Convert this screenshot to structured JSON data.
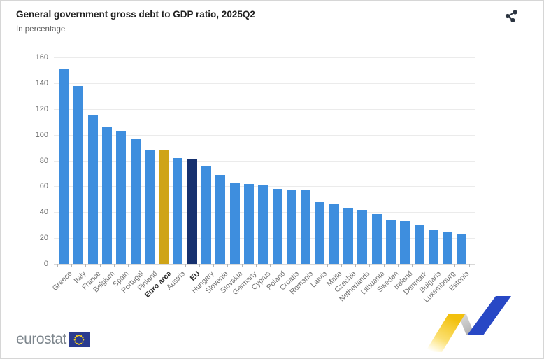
{
  "header": {
    "title": "General government gross debt to GDP ratio, 2025Q2",
    "subtitle": "In percentage"
  },
  "toolbar": {
    "share_icon": "share-network-icon"
  },
  "chart_data": {
    "type": "bar",
    "title": "General government gross debt to GDP ratio, 2025Q2",
    "subtitle": "In percentage",
    "xlabel": "",
    "ylabel": "",
    "ylim": [
      0,
      160
    ],
    "ytick_step": 20,
    "yticks": [
      160,
      140,
      120,
      100,
      80,
      60,
      40,
      20,
      0
    ],
    "grid": true,
    "legend": false,
    "categories": [
      "Greece",
      "Italy",
      "France",
      "Belgium",
      "Spain",
      "Portugal",
      "Finland",
      "Euro area",
      "Austria",
      "EU",
      "Hungary",
      "Slovenia",
      "Slovakia",
      "Germany",
      "Cyprus",
      "Poland",
      "Croatia",
      "Romania",
      "Latvia",
      "Malta",
      "Czechia",
      "Netherlands",
      "Lithuania",
      "Sweden",
      "Ireland",
      "Denmark",
      "Bulgaria",
      "Luxembourg",
      "Estonia"
    ],
    "values": [
      151,
      138,
      115.5,
      106,
      103,
      96.5,
      88,
      88.3,
      82,
      81.5,
      76,
      69,
      62.5,
      62,
      61,
      58,
      57,
      57,
      47.5,
      46.5,
      43.5,
      42,
      38.5,
      34,
      33,
      30,
      26,
      25,
      23
    ],
    "emphasized_categories": [
      "Euro area",
      "EU"
    ],
    "bar_color_default": "#3E8EDE",
    "bar_color_overrides": {
      "Euro area": "#CFA417",
      "EU": "#16306E"
    }
  },
  "branding": {
    "logo_text": "eurostat",
    "flag_icon": "eu-flag-icon",
    "ribbon_icon": "eurostat-ribbon-graphic",
    "flag_blue": "#2a3b8f",
    "star_yellow": "#FFD617",
    "ribbon_yellow": "#F2C00D",
    "ribbon_blue": "#2848C5",
    "ribbon_gray": "#c9c9c9"
  },
  "colors": {
    "bar_blue": "#3E8EDE",
    "bar_gold": "#CFA417",
    "bar_navy": "#16306E",
    "gridline": "#ebebeb",
    "axis_text": "#6d6d6d"
  }
}
